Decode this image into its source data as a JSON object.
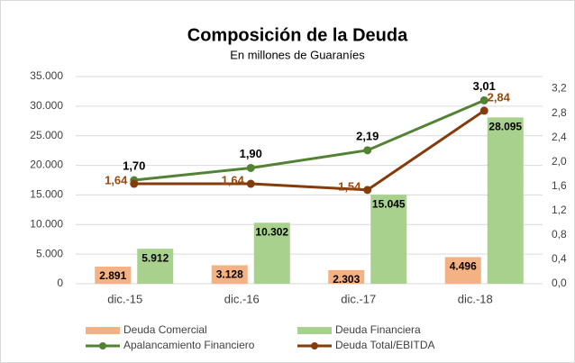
{
  "chart_data": {
    "type": "bar",
    "title": "Composición de la Deuda",
    "subtitle": "En millones de Guaraníes",
    "categories": [
      "dic.-15",
      "dic.-16",
      "dic.-17",
      "dic.-18"
    ],
    "series": [
      {
        "name": "Deuda Comercial",
        "type": "bar",
        "color": "#f4b183",
        "values": [
          2891,
          3128,
          2303,
          4496
        ],
        "value_labels": [
          "2.891",
          "3.128",
          "2.303",
          "4.496"
        ]
      },
      {
        "name": "Deuda Financiera",
        "type": "bar",
        "color": "#a9d18e",
        "values": [
          5912,
          10302,
          15045,
          28095
        ],
        "value_labels": [
          "5.912",
          "10.302",
          "15.045",
          "28.095"
        ]
      },
      {
        "name": "Apalancamiento Financiero",
        "type": "line",
        "axis": "y2",
        "color": "#548235",
        "label_color": "#000000",
        "values": [
          1.7,
          1.9,
          2.19,
          3.01
        ],
        "value_labels": [
          "1,70",
          "1,90",
          "2,19",
          "3,01"
        ]
      },
      {
        "name": "Deuda Total/EBITDA",
        "type": "line",
        "axis": "y2",
        "color": "#843c0c",
        "label_color": "#9c4a0c",
        "values": [
          1.64,
          1.64,
          1.54,
          2.84
        ],
        "value_labels": [
          "1,64",
          "1,64",
          "1,54",
          "2,84"
        ]
      }
    ],
    "ylim": [
      0,
      35000
    ],
    "yticks": [
      0,
      {
        "value": 5000,
        "label": "5.000"
      },
      {
        "value": 10000,
        "label": "10.000"
      },
      {
        "value": 15000,
        "label": "15.000"
      },
      {
        "value": 20000,
        "label": "20.000"
      },
      {
        "value": 25000,
        "label": "25.000"
      },
      {
        "value": 30000,
        "label": "30.000"
      },
      {
        "value": 35000,
        "label": "35.000"
      }
    ],
    "y2lim": [
      0,
      3.4
    ],
    "y2ticks": [
      {
        "value": 0,
        "label": "0,0"
      },
      {
        "value": 0.4,
        "label": "0,4"
      },
      {
        "value": 0.8,
        "label": "0,8"
      },
      {
        "value": 1.2,
        "label": "1,2"
      },
      {
        "value": 1.6,
        "label": "1,6"
      },
      {
        "value": 2.0,
        "label": "2,0"
      },
      {
        "value": 2.4,
        "label": "2,4"
      },
      {
        "value": 2.8,
        "label": "2,8"
      },
      {
        "value": 3.2,
        "label": "3,2"
      }
    ],
    "grid": true
  }
}
